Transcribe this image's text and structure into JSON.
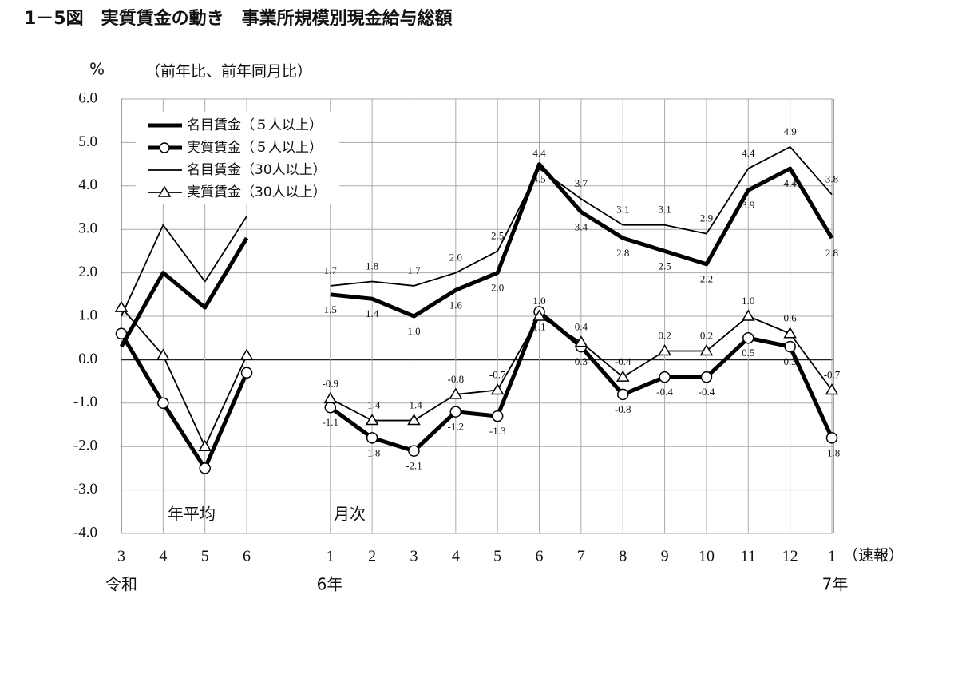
{
  "chart_data": {
    "type": "line",
    "title": "1－5図　実質賃金の動き　事業所規模別現金給与総額",
    "y_unit": "%",
    "subtitle": "（前年比、前年同月比）",
    "annotations": [
      "年平均",
      "月次"
    ],
    "era_labels": [
      "令和",
      "6年",
      "7年"
    ],
    "last_note": "（速報）",
    "categories": [
      "3",
      "4",
      "5",
      "6",
      null,
      "1",
      "2",
      "3",
      "4",
      "5",
      "6",
      "7",
      "8",
      "9",
      "10",
      "11",
      "12",
      "1"
    ],
    "ylim": [
      -4,
      6
    ],
    "yticks": [
      {
        "value": -4,
        "label": "-4.0"
      },
      {
        "value": -3,
        "label": "-3.0"
      },
      {
        "value": -2,
        "label": "-2.0"
      },
      {
        "value": -1,
        "label": "-1.0"
      },
      {
        "value": 0,
        "label": "0.0"
      },
      {
        "value": 1,
        "label": "1.0"
      },
      {
        "value": 2,
        "label": "2.0"
      },
      {
        "value": 3,
        "label": "3.0"
      },
      {
        "value": 4,
        "label": "4.0"
      },
      {
        "value": 5,
        "label": "5.0"
      },
      {
        "value": 6,
        "label": "6.0"
      }
    ],
    "grid": true,
    "legend": "top-left",
    "series": [
      {
        "name": "名目賃金（５人以上）",
        "color": "#000000",
        "line_width": 5,
        "marker": null,
        "values": [
          0.3,
          2.0,
          1.2,
          2.8,
          null,
          1.5,
          1.4,
          1.0,
          1.6,
          2.0,
          4.5,
          3.4,
          2.8,
          2.5,
          2.2,
          3.9,
          4.4,
          2.8
        ],
        "value_labels": [
          null,
          null,
          null,
          null,
          null,
          "1.5",
          "1.4",
          "1.0",
          "1.6",
          "2.0",
          "4.5",
          "3.4",
          "2.8",
          "2.5",
          "2.2",
          "3.9",
          "4.4",
          "2.8"
        ]
      },
      {
        "name": "実質賃金（５人以上）",
        "color": "#000000",
        "line_width": 5,
        "marker": "circle",
        "values": [
          0.6,
          -1.0,
          -2.5,
          -0.3,
          null,
          -1.1,
          -1.8,
          -2.1,
          -1.2,
          -1.3,
          1.1,
          0.3,
          -0.8,
          -0.4,
          -0.4,
          0.5,
          0.3,
          -1.8
        ],
        "value_labels": [
          null,
          null,
          null,
          null,
          null,
          "-1.1",
          "-1.8",
          "-2.1",
          "-1.2",
          "-1.3",
          "1.1",
          "0.3",
          "-0.8",
          "-0.4",
          "-0.4",
          "0.5",
          "0.3",
          "-1.8"
        ]
      },
      {
        "name": "名目賃金（30人以上）",
        "color": "#000000",
        "line_width": 1.8,
        "marker": null,
        "values": [
          1.0,
          3.1,
          1.8,
          3.3,
          null,
          1.7,
          1.8,
          1.7,
          2.0,
          2.5,
          4.4,
          3.7,
          3.1,
          3.1,
          2.9,
          4.4,
          4.9,
          3.8
        ],
        "value_labels": [
          null,
          null,
          null,
          null,
          null,
          "1.7",
          "1.8",
          "1.7",
          "2.0",
          "2.5",
          "4.4",
          "3.7",
          "3.1",
          "3.1",
          "2.9",
          "4.4",
          "4.9",
          "3.8"
        ]
      },
      {
        "name": "実質賃金（30人以上）",
        "color": "#000000",
        "line_width": 1.8,
        "marker": "triangle",
        "values": [
          1.2,
          0.1,
          -2.0,
          0.1,
          null,
          -0.9,
          -1.4,
          -1.4,
          -0.8,
          -0.7,
          1.0,
          0.4,
          -0.4,
          0.2,
          0.2,
          1.0,
          0.6,
          -0.7
        ],
        "value_labels": [
          null,
          null,
          null,
          null,
          null,
          "-0.9",
          "-1.4",
          "-1.4",
          "-0.8",
          "-0.7",
          "1.0",
          "0.4",
          "-0.4",
          "0.2",
          "0.2",
          "1.0",
          "0.6",
          "-0.7"
        ]
      }
    ]
  }
}
